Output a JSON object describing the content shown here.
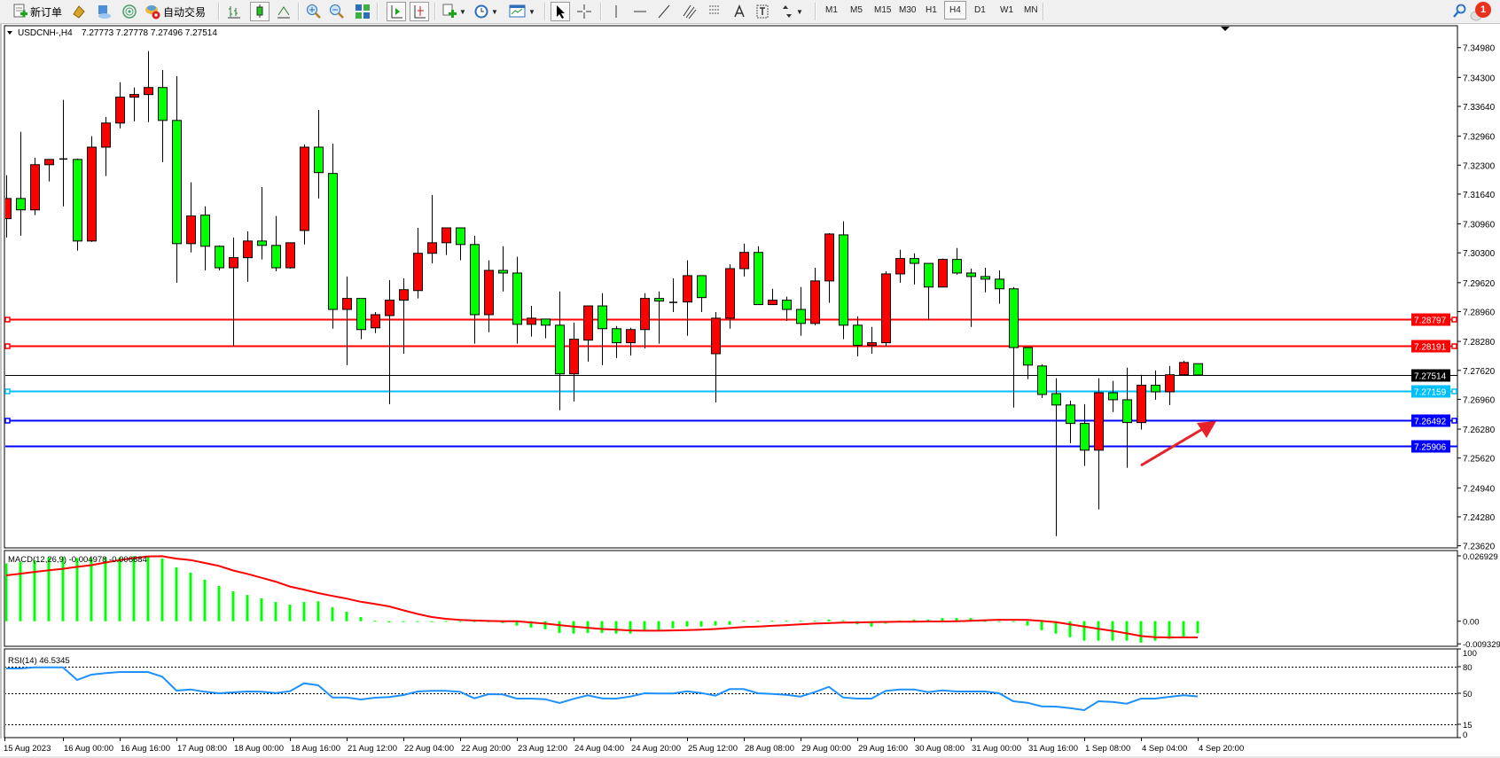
{
  "toolbar": {
    "new_order_label": "新订单",
    "auto_trading_label": "自动交易",
    "timeframes": [
      "M1",
      "M5",
      "M15",
      "M30",
      "H1",
      "H4",
      "D1",
      "W1",
      "MN"
    ],
    "active_timeframe": "H4",
    "notification_count": "1"
  },
  "chart_header": {
    "symbol": "USDCNH-,H4",
    "ohlc": "7.27773 7.27778 7.27496 7.27514"
  },
  "chart_data": [
    {
      "type": "candlestick",
      "title": "USDCNH-,H4",
      "bull_color": "#ff0000",
      "bear_color": "#00ff00",
      "ylim": [
        7.2362,
        7.3498
      ],
      "y_ticks": [
        "7.34980",
        "7.34300",
        "7.33640",
        "7.32960",
        "7.32300",
        "7.31640",
        "7.30960",
        "7.30300",
        "7.29620",
        "7.28960",
        "7.28280",
        "7.27620",
        "7.26960",
        "7.26280",
        "7.25620",
        "7.24940",
        "7.24280",
        "7.23620"
      ],
      "x_tick_labels": [
        "15 Aug 2023",
        "16 Aug 00:00",
        "16 Aug 16:00",
        "17 Aug 08:00",
        "18 Aug 00:00",
        "18 Aug 16:00",
        "21 Aug 12:00",
        "22 Aug 04:00",
        "22 Aug 20:00",
        "23 Aug 12:00",
        "24 Aug 04:00",
        "24 Aug 20:00",
        "25 Aug 12:00",
        "28 Aug 08:00",
        "29 Aug 00:00",
        "29 Aug 16:00",
        "30 Aug 08:00",
        "31 Aug 00:00",
        "31 Aug 16:00",
        "1 Sep 08:00",
        "4 Sep 04:00",
        "4 Sep 20:00"
      ],
      "ohlc": [
        [
          7.3108,
          7.3207,
          7.3065,
          7.3154
        ],
        [
          7.3154,
          7.3306,
          7.3069,
          7.3128
        ],
        [
          7.3128,
          7.3247,
          7.3116,
          7.3231
        ],
        [
          7.3231,
          7.3243,
          7.3193,
          7.3243
        ],
        [
          7.3243,
          7.3379,
          7.3136,
          7.3245
        ],
        [
          7.3243,
          7.3245,
          7.3035,
          7.3057
        ],
        [
          7.3057,
          7.3296,
          7.3055,
          7.3271
        ],
        [
          7.3271,
          7.334,
          7.3205,
          7.3326
        ],
        [
          7.3326,
          7.3419,
          7.3314,
          7.3385
        ],
        [
          7.3385,
          7.3407,
          7.333,
          7.3391
        ],
        [
          7.3391,
          7.349,
          7.3328,
          7.3407
        ],
        [
          7.3407,
          7.3447,
          7.3237,
          7.3332
        ],
        [
          7.3332,
          7.3433,
          7.2962,
          7.3051
        ],
        [
          7.3051,
          7.3191,
          7.3031,
          7.3114
        ],
        [
          7.3116,
          7.3136,
          7.299,
          7.3045
        ],
        [
          7.3045,
          7.3047,
          7.299,
          7.2996
        ],
        [
          7.2996,
          7.3065,
          7.2817,
          7.3019
        ],
        [
          7.3019,
          7.3079,
          7.2964,
          7.3057
        ],
        [
          7.3057,
          7.318,
          7.3015,
          7.3047
        ],
        [
          7.3047,
          7.3114,
          7.2988,
          7.2996
        ],
        [
          7.2996,
          7.3053,
          7.2994,
          7.3053
        ],
        [
          7.3081,
          7.3277,
          7.3049,
          7.3271
        ],
        [
          7.3271,
          7.3356,
          7.3154,
          7.3213
        ],
        [
          7.3211,
          7.3279,
          7.2857,
          7.2901
        ],
        [
          7.2901,
          7.2976,
          7.2774,
          7.2926
        ],
        [
          7.2926,
          7.2926,
          7.2833,
          7.2855
        ],
        [
          7.2859,
          7.2895,
          7.2847,
          7.2889
        ],
        [
          7.2887,
          7.2968,
          7.2685,
          7.2922
        ],
        [
          7.2922,
          7.2972,
          7.28,
          7.2946
        ],
        [
          7.2944,
          7.3087,
          7.2926,
          7.3029
        ],
        [
          7.3029,
          7.3162,
          7.3006,
          7.3053
        ],
        [
          7.3053,
          7.3087,
          7.3025,
          7.3087
        ],
        [
          7.3087,
          7.3087,
          7.3013,
          7.3049
        ],
        [
          7.3049,
          7.3069,
          7.2823,
          7.2889
        ],
        [
          7.2889,
          7.3013,
          7.2849,
          7.299
        ],
        [
          7.299,
          7.3045,
          7.2942,
          7.2984
        ],
        [
          7.2984,
          7.3021,
          7.2823,
          7.2867
        ],
        [
          7.2867,
          7.2909,
          7.2839,
          7.2881
        ],
        [
          7.2879,
          7.2879,
          7.2835,
          7.2865
        ],
        [
          7.2865,
          7.2942,
          7.2671,
          7.2754
        ],
        [
          7.2754,
          7.2871,
          7.2691,
          7.2833
        ],
        [
          7.2831,
          7.2909,
          7.2782,
          7.2909
        ],
        [
          7.2909,
          7.2938,
          7.2774,
          7.2857
        ],
        [
          7.2857,
          7.2863,
          7.279,
          7.2825
        ],
        [
          7.2825,
          7.2859,
          7.2796,
          7.2855
        ],
        [
          7.2855,
          7.2938,
          7.2812,
          7.2926
        ],
        [
          7.2926,
          7.2942,
          7.2823,
          7.292
        ],
        [
          7.2918,
          7.2972,
          7.2895,
          7.2918
        ],
        [
          7.2918,
          7.3013,
          7.2841,
          7.2978
        ],
        [
          7.2978,
          7.2978,
          7.2895,
          7.2928
        ],
        [
          7.28,
          7.2895,
          7.2689,
          7.2881
        ],
        [
          7.2881,
          7.3004,
          7.2857,
          7.2994
        ],
        [
          7.2994,
          7.3051,
          7.2976,
          7.3031
        ],
        [
          7.3031,
          7.3045,
          7.2912,
          7.2912
        ],
        [
          7.2912,
          7.2948,
          7.2912,
          7.2922
        ],
        [
          7.2922,
          7.293,
          7.2875,
          7.2901
        ],
        [
          7.2901,
          7.2952,
          7.2841,
          7.2869
        ],
        [
          7.2869,
          7.2996,
          7.2865,
          7.2966
        ],
        [
          7.2966,
          7.3075,
          7.2916,
          7.3073
        ],
        [
          7.3071,
          7.3102,
          7.2833,
          7.2865
        ],
        [
          7.2865,
          7.2885,
          7.2794,
          7.2819
        ],
        [
          7.2819,
          7.2861,
          7.28,
          7.2825
        ],
        [
          7.2825,
          7.2988,
          7.2817,
          7.2982
        ],
        [
          7.2982,
          7.3037,
          7.2962,
          7.3017
        ],
        [
          7.3017,
          7.3029,
          7.2958,
          7.3006
        ],
        [
          7.3006,
          7.3006,
          7.2877,
          7.2952
        ],
        [
          7.2952,
          7.3017,
          7.2952,
          7.3015
        ],
        [
          7.3015,
          7.3041,
          7.298,
          7.2984
        ],
        [
          7.2984,
          7.2994,
          7.2861,
          7.2976
        ],
        [
          7.2976,
          7.2996,
          7.294,
          7.297
        ],
        [
          7.297,
          7.299,
          7.2914,
          7.2948
        ],
        [
          7.2948,
          7.2952,
          7.2677,
          7.2814
        ],
        [
          7.2814,
          7.2814,
          7.2742,
          7.2774
        ],
        [
          7.2772,
          7.2776,
          7.2699,
          7.2707
        ],
        [
          7.2709,
          7.2744,
          7.2384,
          7.2683
        ],
        [
          7.2683,
          7.2693,
          7.2596,
          7.2641
        ],
        [
          7.2641,
          7.2685,
          7.2544,
          7.258
        ],
        [
          7.258,
          7.2744,
          7.2445,
          7.2711
        ],
        [
          7.2711,
          7.2738,
          7.2667,
          7.2695
        ],
        [
          7.2695,
          7.2768,
          7.254,
          7.2643
        ],
        [
          7.2643,
          7.2752,
          7.2627,
          7.2728
        ],
        [
          7.2728,
          7.2762,
          7.2695,
          7.2713
        ],
        [
          7.2713,
          7.2772,
          7.2683,
          7.2752
        ],
        [
          7.2752,
          7.2784,
          7.2752,
          7.278
        ],
        [
          7.27773,
          7.27778,
          7.27496,
          7.27514
        ]
      ],
      "horizontal_lines": [
        {
          "price": "7.28797",
          "color": "#ff0000",
          "handles": true
        },
        {
          "price": "7.28191",
          "color": "#ff0000",
          "handles": true
        },
        {
          "price": "7.27514",
          "color": "#000000",
          "handles": false,
          "bid": true
        },
        {
          "price": "7.27159",
          "color": "#00bfff",
          "handles": true
        },
        {
          "price": "7.26492",
          "color": "#0000ff",
          "handles": true
        },
        {
          "price": "7.25906",
          "color": "#0000ff",
          "handles": false
        }
      ],
      "annotation_arrow_color": "#e8222a"
    },
    {
      "type": "bar+line",
      "label": "MACD(12,26,9) -0.004978 -0.006684",
      "ylim": [
        -0.009329,
        0.026929
      ],
      "y_ticks": [
        "0.026929",
        "0.00",
        "-0.009329"
      ],
      "histogram_color": "#00ff00",
      "signal_color": "#ff0000",
      "histogram": [
        0.0238,
        0.0246,
        0.0252,
        0.0262,
        0.0265,
        0.026,
        0.026,
        0.0263,
        0.0263,
        0.0268,
        0.0269,
        0.0258,
        0.0222,
        0.02,
        0.0171,
        0.0145,
        0.0123,
        0.0108,
        0.0094,
        0.0079,
        0.0068,
        0.0079,
        0.0082,
        0.0057,
        0.0039,
        0.0017,
        0.0002,
        -0.0005,
        -0.0002,
        -0.0002,
        -0.0001,
        0.0001,
        0,
        -0.0002,
        -0.0004,
        -0.0008,
        -0.0018,
        -0.0026,
        -0.0033,
        -0.0048,
        -0.0051,
        -0.0048,
        -0.0048,
        -0.0051,
        -0.0051,
        -0.0037,
        -0.0037,
        -0.0029,
        -0.0022,
        -0.0022,
        -0.0018,
        -0.0015,
        0.0002,
        0.0002,
        0.0002,
        0.0002,
        0.0002,
        0.0002,
        0.0007,
        0.0004,
        -0.0013,
        -0.0022,
        -0.001,
        0.0003,
        0.0007,
        0.0007,
        0.0013,
        0.0013,
        0.0013,
        0.0001,
        0,
        -0.0002,
        -0.0018,
        -0.0037,
        -0.0051,
        -0.0066,
        -0.008,
        -0.008,
        -0.008,
        -0.008,
        -0.0088,
        -0.008,
        -0.0073,
        -0.0066,
        -0.005
      ],
      "signal": [
        0.0189,
        0.0196,
        0.0203,
        0.021,
        0.0216,
        0.0224,
        0.0231,
        0.0242,
        0.0252,
        0.026,
        0.0267,
        0.0268,
        0.0258,
        0.0252,
        0.024,
        0.0228,
        0.0209,
        0.0195,
        0.0179,
        0.0163,
        0.0143,
        0.013,
        0.0116,
        0.0104,
        0.0093,
        0.008,
        0.0071,
        0.0061,
        0.0045,
        0.003,
        0.0017,
        0.001,
        0.0005,
        0.0003,
        0.0001,
        0,
        0,
        -0.0005,
        -0.001,
        -0.0016,
        -0.0022,
        -0.0027,
        -0.0032,
        -0.0035,
        -0.0038,
        -0.0039,
        -0.0039,
        -0.0038,
        -0.0037,
        -0.0035,
        -0.0032,
        -0.0028,
        -0.0024,
        -0.0022,
        -0.0019,
        -0.0016,
        -0.0013,
        -0.001,
        -0.0008,
        -0.0006,
        -0.0005,
        -0.0004,
        -0.0003,
        -0.0002,
        -0.0002,
        -0.0001,
        -0.0001,
        0,
        0.0002,
        0.0004,
        0.0006,
        0.0006,
        0.0005,
        0.0001,
        -0.0004,
        -0.0013,
        -0.0022,
        -0.0031,
        -0.004,
        -0.005,
        -0.0061,
        -0.0066,
        -0.0067,
        -0.0067,
        -0.0067
      ]
    },
    {
      "type": "line",
      "label": "RSI(14) 46.5345",
      "ylim": [
        0,
        100
      ],
      "y_ticks": [
        "100",
        "80",
        "50",
        "15",
        "0"
      ],
      "levels": [
        80,
        50,
        15
      ],
      "line_color": "#1e90ff",
      "values": [
        78,
        78,
        79.3,
        79.3,
        79.3,
        65,
        71,
        72.7,
        74,
        74,
        74,
        68.7,
        53,
        54.3,
        51.7,
        50,
        51,
        52,
        51.7,
        50.3,
        52.3,
        61.3,
        59,
        45.3,
        45.3,
        43,
        45,
        45.7,
        48,
        52,
        52.7,
        52.7,
        51.7,
        44.3,
        49,
        48.7,
        44,
        44,
        43.3,
        39,
        43.7,
        47.7,
        44.3,
        44,
        46.3,
        50,
        49.7,
        49.7,
        52.3,
        50.3,
        47.3,
        54.7,
        54.7,
        50,
        49.3,
        48.3,
        46.3,
        51.3,
        57.3,
        45.3,
        44,
        44,
        52.7,
        54.3,
        54.3,
        51.3,
        53.3,
        52,
        52,
        52,
        50,
        41,
        39.3,
        35.3,
        35,
        33.3,
        31,
        41,
        40.3,
        38.3,
        44,
        44,
        46,
        47.7,
        46.5345
      ]
    }
  ]
}
